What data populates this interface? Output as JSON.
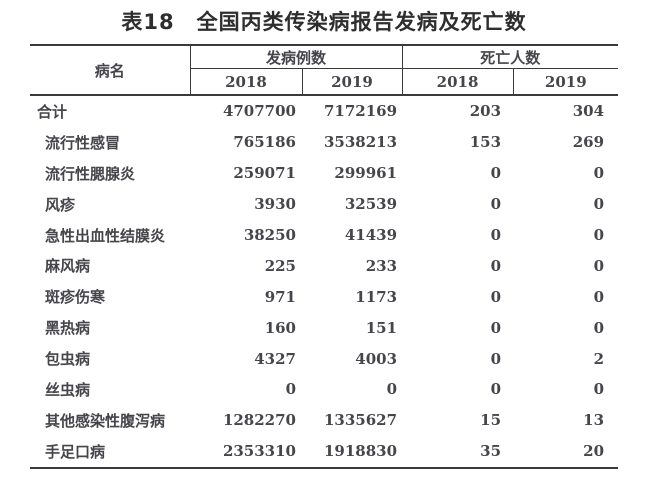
{
  "page": {
    "title": "表18　全国丙类传染病报告发病及死亡数"
  },
  "table": {
    "headers": {
      "disease": "病名",
      "cases_group": "发病例数",
      "deaths_group": "死亡人数",
      "years": [
        "2018",
        "2019",
        "2018",
        "2019"
      ]
    },
    "rows": [
      {
        "name": "合计",
        "total": true,
        "values": [
          "4707700",
          "7172169",
          "203",
          "304"
        ]
      },
      {
        "name": "流行性感冒",
        "total": false,
        "values": [
          "765186",
          "3538213",
          "153",
          "269"
        ]
      },
      {
        "name": "流行性腮腺炎",
        "total": false,
        "values": [
          "259071",
          "299961",
          "0",
          "0"
        ]
      },
      {
        "name": "风疹",
        "total": false,
        "values": [
          "3930",
          "32539",
          "0",
          "0"
        ]
      },
      {
        "name": "急性出血性结膜炎",
        "total": false,
        "values": [
          "38250",
          "41439",
          "0",
          "0"
        ]
      },
      {
        "name": "麻风病",
        "total": false,
        "values": [
          "225",
          "233",
          "0",
          "0"
        ]
      },
      {
        "name": "斑疹伤寒",
        "total": false,
        "values": [
          "971",
          "1173",
          "0",
          "0"
        ]
      },
      {
        "name": "黑热病",
        "total": false,
        "values": [
          "160",
          "151",
          "0",
          "0"
        ]
      },
      {
        "name": "包虫病",
        "total": false,
        "values": [
          "4327",
          "4003",
          "0",
          "2"
        ]
      },
      {
        "name": "丝虫病",
        "total": false,
        "values": [
          "0",
          "0",
          "0",
          "0"
        ]
      },
      {
        "name": "其他感染性腹泻病",
        "total": false,
        "values": [
          "1282270",
          "1335627",
          "15",
          "13"
        ]
      },
      {
        "name": "手足口病",
        "total": false,
        "values": [
          "2353310",
          "1918830",
          "35",
          "20"
        ]
      }
    ]
  },
  "colors": {
    "text": "#45454b",
    "title": "#2e2e2e",
    "border": "#3a3a3a"
  }
}
